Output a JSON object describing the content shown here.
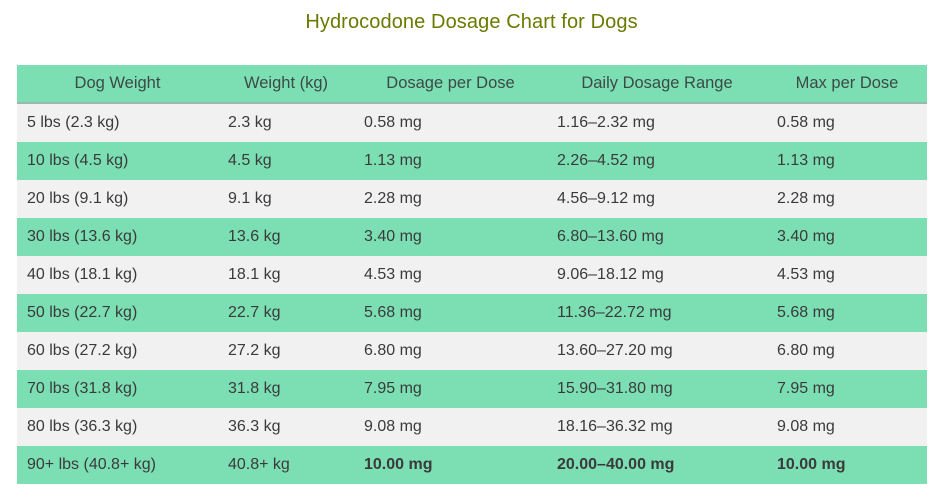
{
  "title": "Hydrocodone Dosage Chart for Dogs",
  "colors": {
    "title": "#6b7a00",
    "header_bg": "#7cdfb4",
    "row_light": "#f1f1f1",
    "row_green": "#7cdfb4",
    "text": "#3a3a3a"
  },
  "table": {
    "headers": [
      "Dog Weight",
      "Weight (kg)",
      "Dosage per Dose",
      "Daily Dosage Range",
      "Max per Dose"
    ],
    "rows": [
      [
        "5 lbs (2.3 kg)",
        "2.3 kg",
        "0.58 mg",
        "1.16–2.32 mg",
        "0.58 mg"
      ],
      [
        "10 lbs (4.5 kg)",
        "4.5 kg",
        "1.13 mg",
        "2.26–4.52 mg",
        "1.13 mg"
      ],
      [
        "20 lbs (9.1 kg)",
        "9.1 kg",
        "2.28 mg",
        "4.56–9.12 mg",
        "2.28 mg"
      ],
      [
        "30 lbs (13.6 kg)",
        "13.6 kg",
        "3.40 mg",
        "6.80–13.60 mg",
        "3.40 mg"
      ],
      [
        "40 lbs (18.1 kg)",
        "18.1 kg",
        "4.53 mg",
        "9.06–18.12 mg",
        "4.53 mg"
      ],
      [
        "50 lbs (22.7 kg)",
        "22.7 kg",
        "5.68 mg",
        "11.36–22.72 mg",
        "5.68 mg"
      ],
      [
        "60 lbs (27.2 kg)",
        "27.2 kg",
        "6.80 mg",
        "13.60–27.20 mg",
        "6.80 mg"
      ],
      [
        "70 lbs (31.8 kg)",
        "31.8 kg",
        "7.95 mg",
        "15.90–31.80 mg",
        "7.95 mg"
      ],
      [
        "80 lbs (36.3 kg)",
        "36.3 kg",
        "9.08 mg",
        "18.16–36.32 mg",
        "9.08 mg"
      ],
      [
        "90+ lbs (40.8+ kg)",
        "40.8+ kg",
        "10.00 mg",
        "20.00–40.00 mg",
        "10.00 mg"
      ]
    ],
    "bold_row_index": 9
  }
}
